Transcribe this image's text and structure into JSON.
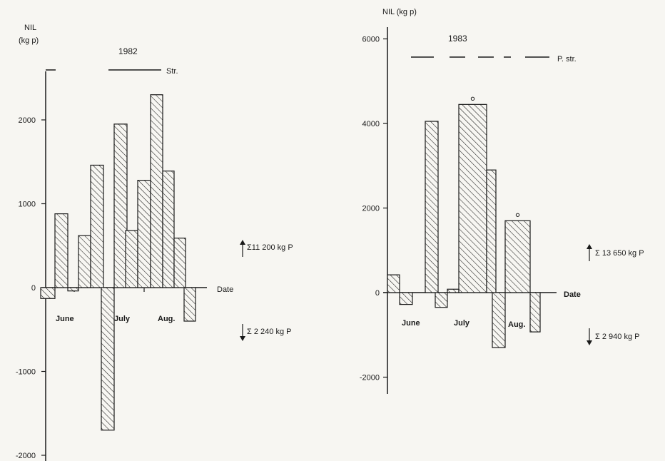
{
  "chart_data": [
    {
      "type": "bar",
      "title": "1982",
      "ylabel": "NIL (kg p)",
      "ylabel_line1": "NIL",
      "ylabel_line2": "(kg p)",
      "xlabel": "Date",
      "ylim": [
        -2000,
        2600
      ],
      "yticks": [
        -2000,
        -1000,
        0,
        1000,
        2000
      ],
      "ytick_labels": [
        "-2000",
        "-1000",
        "0",
        "1000",
        "2000"
      ],
      "month_labels": [
        "June",
        "July",
        "Aug."
      ],
      "stratification_label": "Str.",
      "sum_up": "Σ11 200 kg P",
      "sum_down": "Σ 2 240 kg P",
      "values": [
        -130,
        880,
        -40,
        620,
        1460,
        -1700,
        1950,
        680,
        1280,
        2300,
        1390,
        590,
        -400
      ]
    },
    {
      "type": "bar",
      "title": "1983",
      "ylabel": "NIL (kg p)",
      "xlabel": "Date",
      "ylim": [
        -2300,
        6300
      ],
      "yticks": [
        -2000,
        0,
        2000,
        4000,
        6000
      ],
      "ytick_labels": [
        "-2000",
        "0",
        "2000",
        "4000",
        "6000"
      ],
      "month_labels": [
        "June",
        "July",
        "Aug."
      ],
      "stratification_label": "P. str.",
      "sum_up": "Σ 13 650 kg P",
      "sum_down": "Σ 2 940 kg P",
      "values": [
        420,
        -280,
        4050,
        -350,
        80,
        4450,
        2900,
        -1300,
        1700,
        -930
      ],
      "starred": [
        5,
        8
      ]
    }
  ]
}
